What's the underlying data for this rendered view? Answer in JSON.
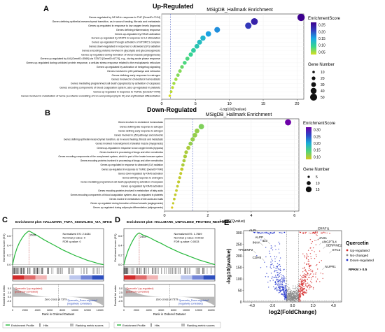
{
  "panels": {
    "A": {
      "letter": "A",
      "heading": "Up-Regulated"
    },
    "B": {
      "letter": "B",
      "heading": "Down-Regulated"
    },
    "C": {
      "letter": "C",
      "heading": "Enrichment plot: HALLMARK_TNFA_SIGNALING_VIA_NFKB"
    },
    "D": {
      "letter": "D",
      "heading": "Enrichment plot: HALLMARK_UNFOLDED_PROTEIN_RESPONSE"
    },
    "E": {
      "letter": "E",
      "heading": ""
    }
  },
  "chart_data": [
    {
      "id": "A",
      "type": "scatter",
      "title": "MSigDB_Hallmark Enrichment",
      "xlabel": "-Log10(Qvalue)",
      "xlim": [
        0,
        21
      ],
      "xticks": [
        0,
        5,
        10,
        15,
        20
      ],
      "threshold": 1.3,
      "color_legend": {
        "title": "EnrichmentScore",
        "ticks": [
          "0.25",
          "0.20",
          "0.15",
          "0.10",
          "0.05"
        ],
        "colors": [
          "#3d008f",
          "#3240c0",
          "#19aae6",
          "#36d58e",
          "#d7df1e"
        ]
      },
      "size_legend": {
        "title": "Gene Number",
        "values": [
          10,
          20,
          30,
          40,
          50
        ]
      },
      "categories": [
        "Genes regulated by NF-kB in response to TNF [GeneID=7124]",
        "Genes defining epithelial-mesenchymal transition, as in wound healing, fibrosis and metastasis",
        "Genes up-regulated in response to low oxygen levels (hypoxia)",
        "Genes defining inflammatory response",
        "Genes up-regulated by KRAS activation",
        "Genes up-regulated by STAT5 in response to IL2 stimulation",
        "Genes up-regulated through activation of mTORC1 complex",
        "Genes down-regulated in response to ultraviolet (UV) radiation",
        "Genes encoding proteins involved in glycolysis and gluconeogenesis",
        "Genes up-regulated during formation of blood vessels (angiogenesis)",
        "Genes up-regulated by IL6 [GeneID=3569] via STAT3 [GeneID=6774], e.g., during acute phase response",
        "Genes up-regulated during unfolded protein response, a cellular stress response related to the endoplasmic reticulum",
        "Genes up-regulated by activation of hedgehog signaling",
        "Genes involved in p53 pathways and networks",
        "Genes defining early response to estrogen",
        "Genes involved in cholesterol homeostasis",
        "Genes mediating programmed cell death (apoptosis) by activation of caspases",
        "Genes encoding components of blood coagulation system; also up-regulated in platelets",
        "Genes up-regulated in response to TGFB1 [GeneID=7040]",
        "Genes involved in metabolism of heme (a cofactor consisting of iron and protoporphyrin IX) and erythroblast differentiation"
      ],
      "x": [
        20.6,
        13.7,
        12.8,
        8.2,
        6.9,
        6.1,
        5.6,
        5.2,
        4.7,
        4.3,
        3.8,
        3.4,
        3.0,
        2.7,
        2.4,
        2.1,
        1.8,
        1.6,
        1.4,
        1.2
      ],
      "enrichment_score": [
        0.27,
        0.24,
        0.22,
        0.17,
        0.16,
        0.14,
        0.13,
        0.12,
        0.11,
        0.1,
        0.09,
        0.09,
        0.08,
        0.07,
        0.07,
        0.06,
        0.06,
        0.05,
        0.05,
        0.04
      ],
      "gene_number": [
        52,
        48,
        44,
        38,
        36,
        34,
        32,
        30,
        29,
        26,
        24,
        22,
        20,
        19,
        18,
        16,
        15,
        13,
        12,
        10
      ]
    },
    {
      "id": "B",
      "type": "scatter",
      "title": "MSigDB_Hallmark Enrichment",
      "xlabel": "-Log10(Qvalue)",
      "xlim": [
        0,
        6.2
      ],
      "xticks": [
        0,
        2,
        4,
        6
      ],
      "threshold": 1.3,
      "color_legend": {
        "title": "EnrichmentScore",
        "ticks": [
          "0.30",
          "0.25",
          "0.20",
          "0.15",
          "0.10"
        ],
        "colors": [
          "#6d00a8",
          "#2d47c8",
          "#1aaed8",
          "#52d47a",
          "#d8c81c"
        ]
      },
      "size_legend": {
        "title": "Gene Number",
        "values": [
          5,
          10,
          15
        ]
      },
      "categories": [
        "Genes involved in cholesterol homeostasis",
        "Genes defining late response to estrogen",
        "Genes defining early response to estrogen",
        "Genes involved in p53 pathways and networks",
        "Genes defining epithelial-mesenchymal transition, as in wound healing, fibrosis and metastasis",
        "Genes involved in development of skeletal muscle (myogenesis)",
        "Genes up-regulated in response to low oxygen levels (hypoxia)",
        "Genes involved in processing of drugs and other xenobiotics",
        "Genes encoding components of the complement system, which is part of the innate immune system",
        "Genes encoding proteins involved in processing of drugs and other xenobiotics",
        "Genes up-regulated in response to ultraviolet (UV) radiation",
        "Genes up-regulated in response to TGFB1 [GeneID=7040]",
        "Genes down-regulated by KRAS activation",
        "Genes defining response to androgens",
        "Genes mediating programmed cell death (apoptosis) by activation of caspases",
        "Genes up-regulated by KRAS activation",
        "Genes encoding proteins involved in metabolism of fatty acids",
        "Genes encoding components of blood coagulation system; also up-regulated in platelets",
        "Genes involve in metabolism of bile acids and salts",
        "Genes up-regulated during formation of blood vessels (angiogenesis)",
        "Genes up-regulated during adipocyte differentiation (adipogenesis)"
      ],
      "x": [
        5.7,
        1.7,
        1.5,
        1.4,
        1.3,
        1.2,
        1.1,
        1.0,
        0.95,
        0.9,
        0.85,
        0.8,
        0.75,
        0.7,
        0.65,
        0.6,
        0.55,
        0.5,
        0.45,
        0.4,
        0.35
      ],
      "enrichment_score": [
        0.32,
        0.12,
        0.11,
        0.11,
        0.11,
        0.11,
        0.1,
        0.1,
        0.1,
        0.1,
        0.1,
        0.09,
        0.09,
        0.09,
        0.09,
        0.09,
        0.09,
        0.09,
        0.09,
        0.09,
        0.08
      ],
      "gene_number": [
        16,
        14,
        12,
        12,
        11,
        10,
        10,
        9,
        9,
        8,
        8,
        8,
        7,
        7,
        7,
        6,
        6,
        6,
        6,
        5,
        5
      ]
    },
    {
      "id": "C",
      "type": "line",
      "title": "Enrichment plot: HALLMARK_TNFA_SIGNALING_VIA_NFKB",
      "ylabel": "Enrichment score (ES)",
      "ylim": [
        -0.05,
        0.75
      ],
      "yticks": [
        0.0,
        0.2,
        0.4,
        0.6
      ],
      "xlabel": "Rank in Ordered Dataset",
      "xticks": [
        0,
        2000,
        4000,
        6000,
        8000,
        10000,
        12000,
        14000
      ],
      "xlim": [
        0,
        14600
      ],
      "rank_ylabel": "Ranked list metric",
      "rank_yticks": [
        -2.5,
        0.0,
        2.5,
        5.0
      ],
      "stats": [
        "Normalized ES: 2.6434",
        "Nominal p-value: 0",
        "FDR q-value: 0"
      ],
      "peak_label": "2626",
      "zero_cross_label": "Zero cross at 7379",
      "top_note": [
        "'Quercetin' (up-regulated)",
        "(positively correlated)"
      ],
      "bottom_note": [
        "'Quercetin_Down-regulated'",
        "(negatively correlated)"
      ],
      "legend": [
        "Enrichment Profile",
        "Hits",
        "Ranking metric scores"
      ],
      "x": [
        0,
        300,
        700,
        1100,
        1500,
        1900,
        2300,
        2626,
        3200,
        4000,
        5000,
        6000,
        7000,
        8000,
        9000,
        10000,
        11000,
        12000,
        13000,
        13800,
        14600
      ],
      "y": [
        0,
        0.18,
        0.34,
        0.46,
        0.55,
        0.62,
        0.67,
        0.7,
        0.66,
        0.6,
        0.52,
        0.45,
        0.38,
        0.31,
        0.25,
        0.19,
        0.14,
        0.09,
        0.05,
        0.02,
        0.0
      ]
    },
    {
      "id": "D",
      "type": "line",
      "title": "Enrichment plot: HALLMARK_UNFOLDED_PROTEIN_RESPONSE",
      "ylabel": "Enrichment score (ES)",
      "ylim": [
        -0.05,
        0.75
      ],
      "yticks": [
        0.0,
        0.2,
        0.4,
        0.6
      ],
      "xlabel": "Rank in Ordered Dataset",
      "xticks": [
        0,
        2000,
        4000,
        6000,
        8000,
        10000,
        12000,
        14000
      ],
      "xlim": [
        0,
        14600
      ],
      "rank_ylabel": "Ranked list metric",
      "rank_yticks": [
        -2.5,
        0.0,
        2.5,
        5.0
      ],
      "stats": [
        "Normalized ES: 1.7569",
        "Nominal p-value: 0.0033",
        "FDR q-value: 0.0033"
      ],
      "peak_label": "2464",
      "zero_cross_label": "Zero cross at 7379",
      "top_note": [
        "'Quercetin' (up-regulated)",
        "(positively correlated)"
      ],
      "bottom_note": [
        "'Quercetin_Down-regulated'",
        "(negatively correlated)"
      ],
      "legend": [
        "Enrichment Profile",
        "Hits",
        "Ranking metric scores"
      ],
      "x": [
        0,
        300,
        700,
        1100,
        1500,
        1900,
        2200,
        2464,
        3000,
        4000,
        5000,
        6000,
        7000,
        8000,
        9000,
        10000,
        11000,
        12000,
        13000,
        13800,
        14600
      ],
      "y": [
        0,
        0.15,
        0.3,
        0.42,
        0.52,
        0.6,
        0.64,
        0.66,
        0.62,
        0.57,
        0.5,
        0.44,
        0.37,
        0.31,
        0.25,
        0.2,
        0.15,
        0.1,
        0.06,
        0.03,
        0.0
      ]
    },
    {
      "id": "E",
      "type": "scatter",
      "title": "",
      "xlabel": "log2(FoldChange)",
      "ylabel": "-log10(pvalue)",
      "xlim": [
        -4.8,
        4.8
      ],
      "ylim": [
        0,
        310
      ],
      "xticks": [
        -4.0,
        -2.0,
        0.0,
        2.0,
        4.0
      ],
      "yticks": [
        0,
        50,
        100,
        150,
        200,
        250,
        300
      ],
      "legend_title": "Quercetin",
      "legend": [
        {
          "label": "Up-regulated",
          "color": "#d42b2b"
        },
        {
          "label": "No-changed",
          "color": "#888888"
        },
        {
          "label": "Down-regulated",
          "color": "#2233cc"
        }
      ],
      "legend_note": "RPKM > 0.5",
      "labels": [
        {
          "text": "ALPI",
          "x": -3.3,
          "y": 298
        },
        {
          "text": "ALPP",
          "x": -2.6,
          "y": 268
        },
        {
          "text": "INHA",
          "x": -2.9,
          "y": 245
        },
        {
          "text": "ID3",
          "x": -2.2,
          "y": 252
        },
        {
          "text": "TP53INP2",
          "x": -3.6,
          "y": 212
        },
        {
          "text": "CDH5",
          "x": -2.8,
          "y": 180
        },
        {
          "text": "ERRFI1",
          "x": 2.2,
          "y": 305
        },
        {
          "text": "JAG1",
          "x": 2.3,
          "y": 265
        },
        {
          "text": "ANGPTL4",
          "x": 2.6,
          "y": 248
        },
        {
          "text": "SERPINE2",
          "x": 3.0,
          "y": 232
        },
        {
          "text": "STC2",
          "x": 3.6,
          "y": 212
        },
        {
          "text": "NUPR1",
          "x": 2.9,
          "y": 140
        }
      ]
    }
  ]
}
